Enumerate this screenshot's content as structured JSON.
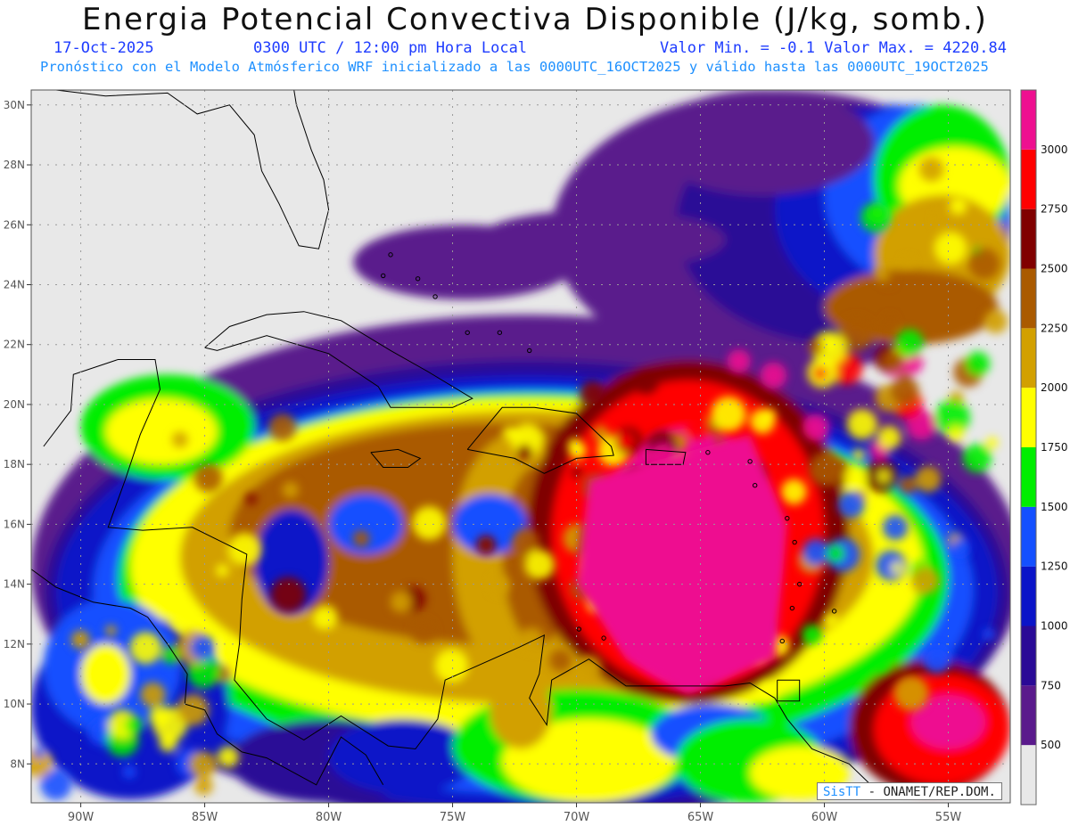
{
  "header": {
    "title": "Energia Potencial Convectiva Disponible (J/kg, somb.)",
    "date": "17-Oct-2025",
    "time": "0300 UTC / 12:00 pm Hora Local",
    "minmax": "Valor Min. = -0.1  Valor Max. = 4220.84",
    "forecast_line": "Pronóstico con el Modelo Atmósferico WRF inicializado a las 0000UTC_16OCT2025 y válido hasta las  0000UTC_19OCT2025"
  },
  "map": {
    "lon_range": [
      -92,
      -52.5
    ],
    "lat_range": [
      6.7,
      30.5
    ],
    "lon_ticks": [
      "90W",
      "85W",
      "80W",
      "75W",
      "70W",
      "65W",
      "60W",
      "55W"
    ],
    "lat_ticks": [
      "30N",
      "28N",
      "26N",
      "24N",
      "22N",
      "20N",
      "18N",
      "16N",
      "14N",
      "12N",
      "10N",
      "8N"
    ],
    "grid": "dotted"
  },
  "colorbar": {
    "colors": [
      "#e8e8e8",
      "#5a1a8c",
      "#2a0a96",
      "#0a14c8",
      "#1450ff",
      "#00ee00",
      "#ffff00",
      "#d2a000",
      "#aa5a00",
      "#800000",
      "#ff0000",
      "#ee1090"
    ],
    "labels": [
      "500",
      "750",
      "1000",
      "1250",
      "1500",
      "1750",
      "2000",
      "2250",
      "2500",
      "2750",
      "3000"
    ]
  },
  "credit": {
    "sis": "SisTT",
    "rest": " - ONAMET/REP.DOM."
  }
}
